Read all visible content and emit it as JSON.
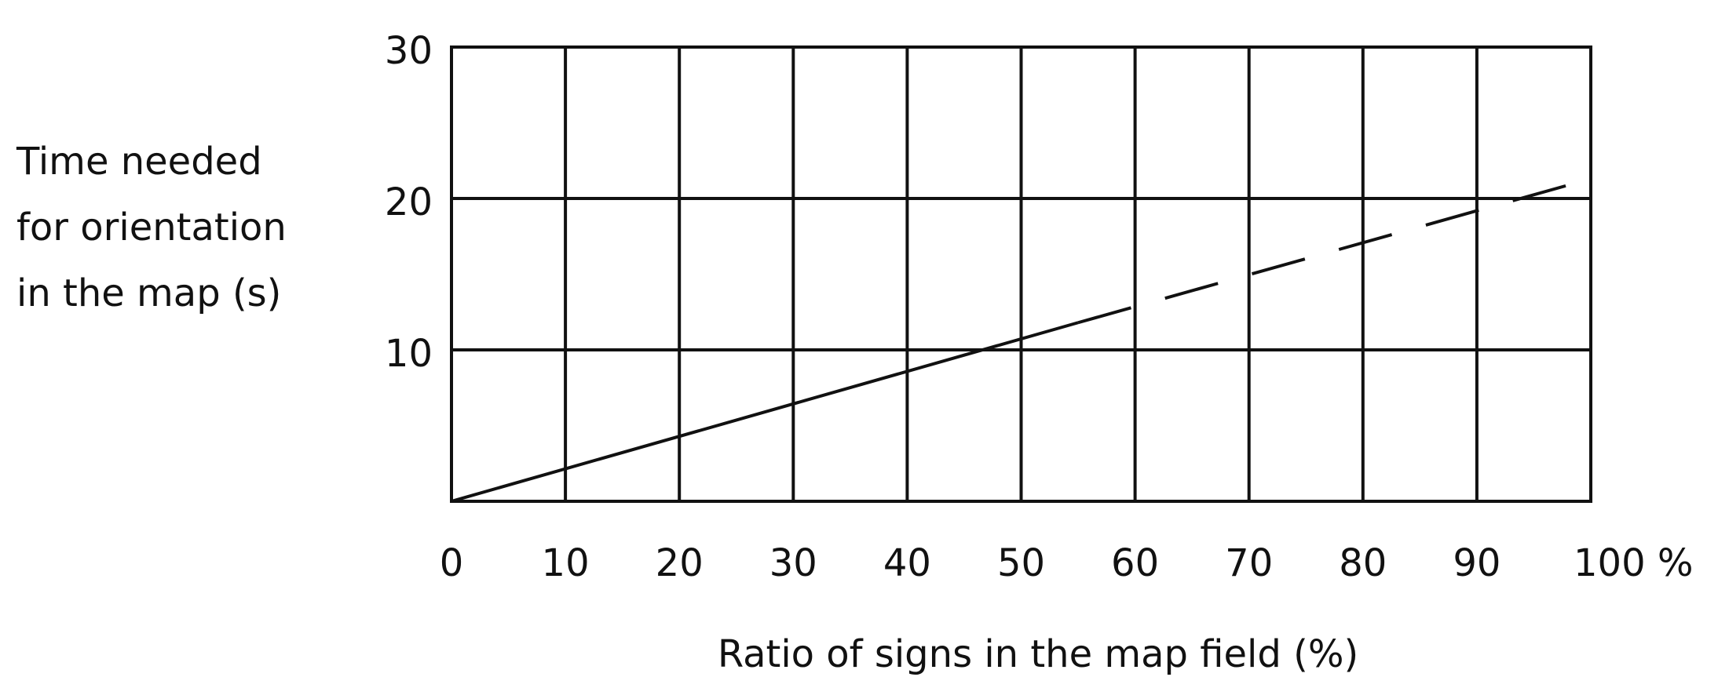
{
  "chart_data": {
    "type": "line",
    "xlabel": "Ratio of signs in the map field (%)",
    "ylabel_lines": [
      "Time needed",
      "for orientation",
      "in the map (s)"
    ],
    "series": [
      {
        "color": "#111111",
        "dashed": false,
        "x": [
          0,
          55
        ],
        "values": [
          0,
          11.8
        ]
      },
      {
        "color": "#111111",
        "dashed": true,
        "x": [
          55,
          100
        ],
        "values": [
          11.8,
          21.3
        ]
      }
    ],
    "xlim": [
      0,
      100
    ],
    "xticks": [
      0,
      10,
      20,
      30,
      40,
      50,
      60,
      70,
      80,
      90,
      {
        "value": 100,
        "label": "100 %"
      }
    ],
    "ylim": [
      0,
      30
    ],
    "yticks": [
      10,
      20,
      30
    ],
    "grid": true
  }
}
